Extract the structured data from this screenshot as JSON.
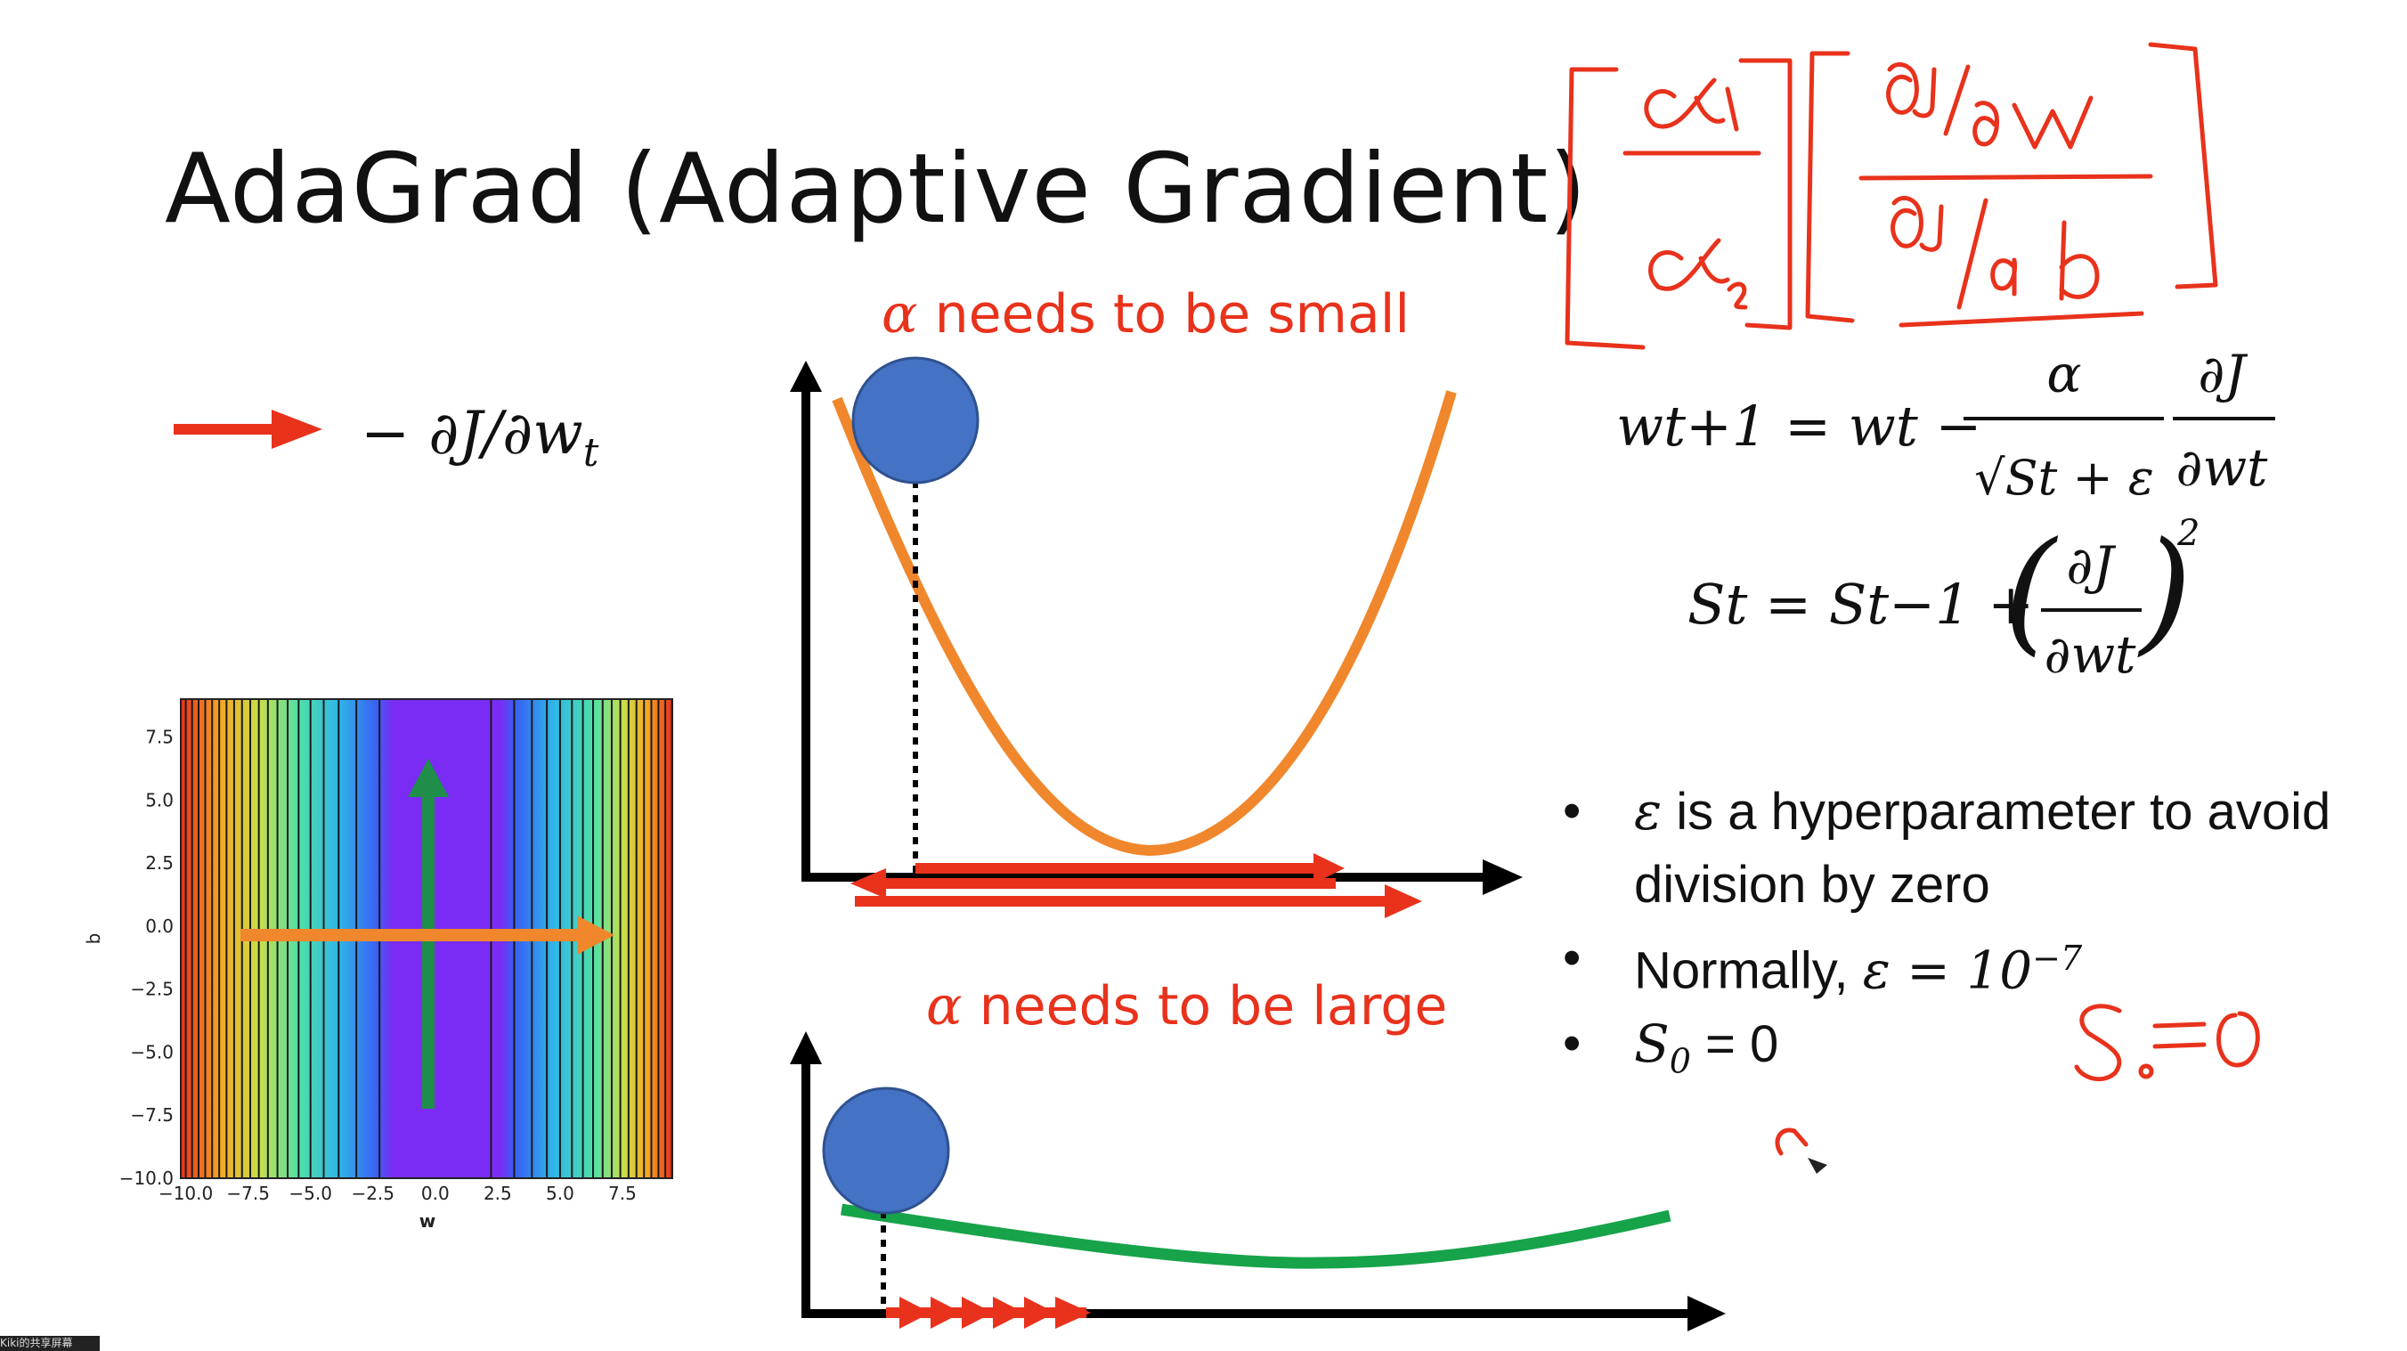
{
  "slide": {
    "title": "AdaGrad (Adaptive Gradient)",
    "caption_small": {
      "symbol": "α",
      "text": " needs to be small"
    },
    "caption_large": {
      "symbol": "α",
      "text": " needs to be large"
    },
    "legend": {
      "label": "− ∂J/∂w",
      "sub": "t"
    },
    "equations": {
      "update_lhs": "wt+1 = wt −",
      "update_num_alpha": "α",
      "update_den": "√St + ε",
      "update_grad_num": "∂J",
      "update_grad_den": "∂wt",
      "accum_lhs": "St = St−1 +",
      "accum_num": "∂J",
      "accum_den": "∂wt",
      "accum_exp": "2"
    },
    "bullets": [
      {
        "prefix": "ε",
        "text": " is a hyperparameter to avoid division by zero"
      },
      {
        "prefix": "",
        "text": "Normally, ",
        "math": "ε = 10",
        "sup": "−7"
      },
      {
        "prefix": "S",
        "sub": "0",
        "text": " = 0"
      }
    ],
    "handwriting": {
      "matrix_left": [
        "α1",
        "α2"
      ],
      "matrix_right": [
        "∂J/∂w",
        "∂J/∂b"
      ],
      "note": "S0=0"
    },
    "colors": {
      "accent_red": "#e8321c",
      "ball_blue": "#4472c4",
      "curve_orange": "#f0872c",
      "curve_green": "#17a34a"
    }
  },
  "contour_plot": {
    "xlabel": "w",
    "ylabel": "b",
    "xticks": [
      "−10.0",
      "−7.5",
      "−5.0",
      "−2.5",
      "0.0",
      "2.5",
      "5.0",
      "7.5"
    ],
    "yticks": [
      "7.5",
      "5.0",
      "2.5",
      "0.0",
      "−2.5",
      "−5.0",
      "−7.5",
      "−10.0"
    ]
  },
  "footer_tag": "Kiki的共享屏幕"
}
